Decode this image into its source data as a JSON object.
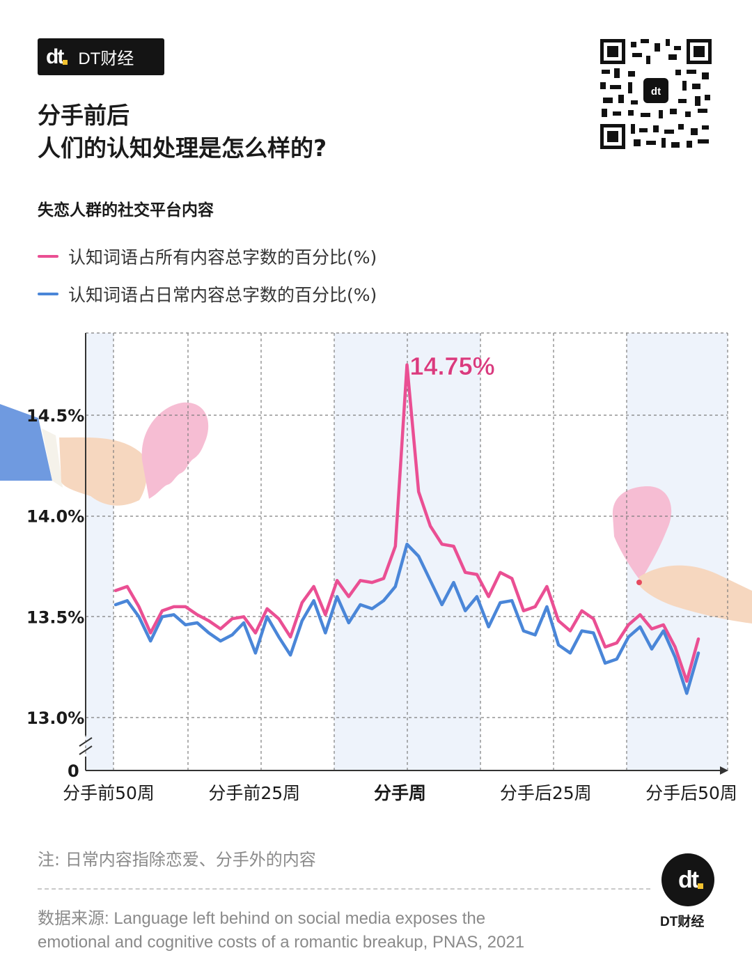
{
  "brand": {
    "mark": "dt",
    "name": "DT财经"
  },
  "header": {
    "title_line1": "分手前后",
    "title_line2": "人们的认知处理是怎么样的?",
    "subtitle": "失恋人群的社交平台内容"
  },
  "colors": {
    "pink": "#ea4f93",
    "blue": "#4a86d8",
    "band": "#eef3fb",
    "grid": "#7d7d7d"
  },
  "chart_data": {
    "type": "line",
    "title": "失恋人群的社交平台内容",
    "x": [
      -50,
      -48,
      -46,
      -44,
      -42,
      -40,
      -38,
      -36,
      -34,
      -32,
      -30,
      -28,
      -26,
      -24,
      -22,
      -20,
      -18,
      -16,
      -14,
      -12,
      -10,
      -8,
      -6,
      -4,
      -2,
      0,
      2,
      4,
      6,
      8,
      10,
      12,
      14,
      16,
      18,
      20,
      22,
      24,
      26,
      28,
      30,
      32,
      34,
      36,
      38,
      40,
      42,
      44,
      46,
      48,
      50
    ],
    "x_ticks": [
      {
        "x": -50,
        "label": "分手前50周"
      },
      {
        "x": -25,
        "label": "分手前25周"
      },
      {
        "x": 0,
        "label": "分手周"
      },
      {
        "x": 25,
        "label": "分手后25周"
      },
      {
        "x": 50,
        "label": "分手后50周"
      }
    ],
    "y_ticks": [
      {
        "y": 13.0,
        "label": "13.0%"
      },
      {
        "y": 13.5,
        "label": "13.5%"
      },
      {
        "y": 14.0,
        "label": "14.0%"
      },
      {
        "y": 14.5,
        "label": "14.5%"
      }
    ],
    "y_zero_label": "0",
    "ylim": [
      12.75,
      14.95
    ],
    "series": [
      {
        "name": "认知词语占所有内容总字数的百分比(%)",
        "color": "#ea4f93",
        "values": [
          13.63,
          13.65,
          13.55,
          13.42,
          13.53,
          13.55,
          13.55,
          13.51,
          13.48,
          13.44,
          13.49,
          13.5,
          13.42,
          13.54,
          13.49,
          13.4,
          13.57,
          13.65,
          13.51,
          13.68,
          13.6,
          13.68,
          13.67,
          13.69,
          13.85,
          14.75,
          14.12,
          13.95,
          13.86,
          13.85,
          13.72,
          13.71,
          13.6,
          13.72,
          13.69,
          13.53,
          13.55,
          13.65,
          13.48,
          13.43,
          13.53,
          13.49,
          13.35,
          13.37,
          13.46,
          13.51,
          13.44,
          13.46,
          13.35,
          13.18,
          13.39
        ]
      },
      {
        "name": "认知词语占日常内容总字数的百分比(%)",
        "color": "#4a86d8",
        "values": [
          13.56,
          13.58,
          13.5,
          13.38,
          13.5,
          13.51,
          13.46,
          13.47,
          13.42,
          13.38,
          13.41,
          13.47,
          13.32,
          13.5,
          13.4,
          13.31,
          13.48,
          13.58,
          13.42,
          13.6,
          13.47,
          13.56,
          13.54,
          13.58,
          13.65,
          13.86,
          13.8,
          13.68,
          13.56,
          13.67,
          13.53,
          13.6,
          13.45,
          13.57,
          13.58,
          13.43,
          13.41,
          13.55,
          13.36,
          13.32,
          13.43,
          13.42,
          13.27,
          13.29,
          13.4,
          13.45,
          13.34,
          13.43,
          13.3,
          13.12,
          13.32
        ]
      }
    ],
    "annotation": {
      "x": 0,
      "y": 14.75,
      "text": "14.75%"
    },
    "grid": true
  },
  "footer": {
    "note": "注: 日常内容指除恋爱、分手外的内容",
    "source_line1": "数据来源: Language left behind on social media exposes the",
    "source_line2": "emotional and cognitive costs of a romantic breakup, PNAS, 2021",
    "logo_name": "DT财经"
  }
}
